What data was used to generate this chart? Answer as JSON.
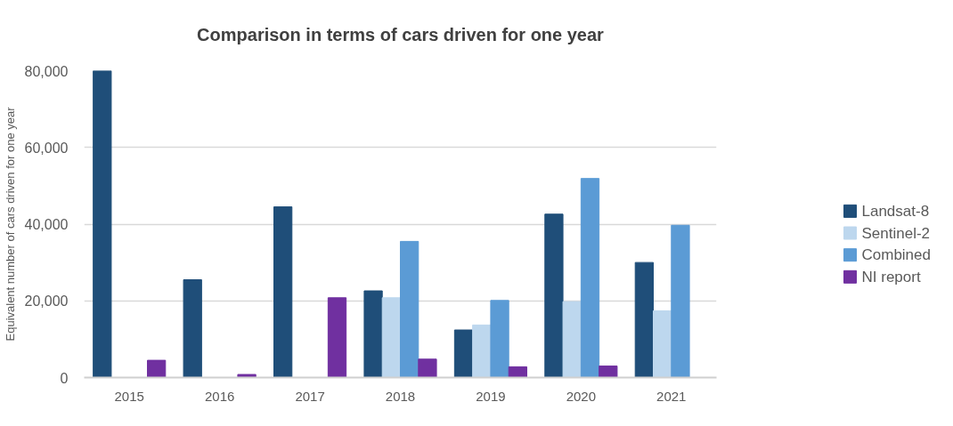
{
  "chart_data": {
    "type": "bar",
    "title": "Comparison in terms of cars driven for one year",
    "ylabel": "Equivalent number of cars driven for one year",
    "categories": [
      "2015",
      "2016",
      "2017",
      "2018",
      "2019",
      "2020",
      "2021"
    ],
    "series": [
      {
        "name": "Landsat-8",
        "color": "#1f4e79",
        "values": [
          80000,
          25500,
          44500,
          22600,
          12400,
          42600,
          30000
        ]
      },
      {
        "name": "Sentinel-2",
        "color": "#bdd7ee",
        "values": [
          null,
          null,
          null,
          20800,
          13700,
          19800,
          17400
        ]
      },
      {
        "name": "Combined",
        "color": "#5b9bd5",
        "values": [
          null,
          null,
          null,
          35500,
          20100,
          51900,
          39700
        ]
      },
      {
        "name": "NI report",
        "color": "#7030a0",
        "values": [
          4500,
          800,
          20800,
          4800,
          2800,
          3000,
          null
        ]
      }
    ],
    "ylim": [
      0,
      80000
    ],
    "yticks": [
      0,
      {
        "value": 20000,
        "label": "20,000"
      },
      {
        "value": 40000,
        "label": "40,000"
      },
      {
        "value": 60000,
        "label": "60,000"
      },
      {
        "value": 80000,
        "label": "80,000"
      }
    ],
    "grid": "y",
    "legend": "right"
  }
}
